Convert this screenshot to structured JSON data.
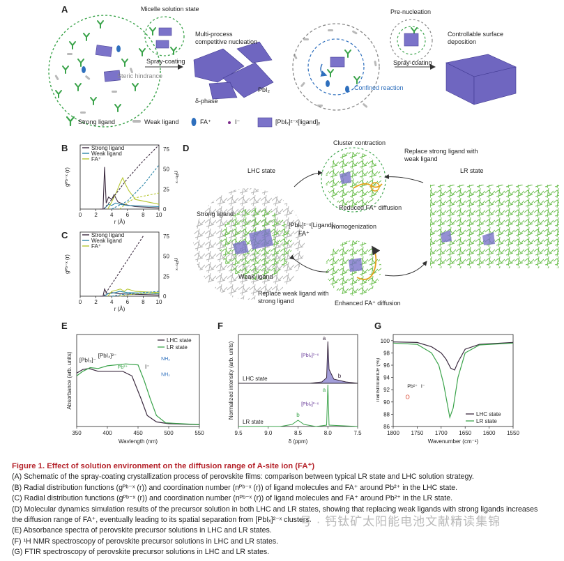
{
  "panelA": {
    "label": "A",
    "micelle": "Micelle solution state",
    "spray1": "Spray-coating",
    "multiprocess": "Multi-process competitive nucleation",
    "steric": "Steric hindrance",
    "delta": "δ-phase",
    "pbi2": "PbI₂",
    "prenuc": "Pre-nucleation",
    "spray2": "Spray-coating",
    "controllable": "Controllable surface deposition",
    "confined": "Confined reaction",
    "legend": {
      "strong": "Strong ligand",
      "weak": "Weak ligand",
      "fa": "FA⁺",
      "iodide": "I⁻",
      "cluster": "[PbIₓ]²⁻ˣ[ligand]ᵧ"
    }
  },
  "panelB": {
    "label": "B",
    "legend": [
      "Strong ligand",
      "Weak ligand",
      "FA⁺"
    ],
    "xlabel": "r (Å)",
    "ylabel": "gᴾᵇ⁻ˣ (r)",
    "y2label": "nᴾᵇ⁻ˣ",
    "xticks": [
      "0",
      "2",
      "4",
      "6",
      "8",
      "10"
    ],
    "y2ticks": [
      "0",
      "25",
      "50",
      "75"
    ]
  },
  "panelC": {
    "label": "C",
    "legend": [
      "Strong ligand",
      "Weak ligand",
      "FA⁺"
    ],
    "xlabel": "r (Å)",
    "ylabel": "gᴾᵇ⁻ˣ (r)",
    "y2label": "nᴾᵇ⁻ˣ",
    "xticks": [
      "0",
      "2",
      "4",
      "6",
      "8",
      "10"
    ],
    "y2ticks": [
      "0",
      "25",
      "50",
      "75"
    ]
  },
  "panelD": {
    "label": "D",
    "cluster_contraction": "Cluster contraction",
    "replace_strong": "Replace strong ligand with weak ligand",
    "lhc_state": "LHC state",
    "lr_state": "LR state",
    "strong_ligand": "Strong ligand",
    "cluster": "[PbIₓ]²⁻ˣ[Ligand]ᵧ",
    "fa": "FA⁺",
    "reduced": "Reduced FA⁺ diffusion",
    "homogenization": "Homogenization",
    "weak_ligand": "Weak ligand",
    "replace_weak": "Replace weak ligand with strong ligand",
    "enhanced": "Enhanced FA⁺ diffusion"
  },
  "panelE": {
    "label": "E",
    "ylabel": "Absorbance (arb. units)",
    "xlabel": "Wavlength (nm)",
    "xticks": [
      "350",
      "400",
      "450",
      "500",
      "550"
    ],
    "legend": [
      "LHC state",
      "LR state"
    ],
    "ann_pbi3": "[PbI₃]⁻",
    "ann_pbi4": "[PbI₄]²⁻",
    "ann_pb": "Pb²⁺",
    "ann_i": "I⁻",
    "ann_nh2": "NH₂"
  },
  "panelF": {
    "label": "F",
    "ylabel": "Normalized intensity (arb. units)",
    "xlabel": "δ (ppm)",
    "xticks": [
      "9.5",
      "9.0",
      "8.5",
      "8.0",
      "7.5"
    ],
    "lhc": "LHC state",
    "lr": "LR state",
    "peak_a": "a",
    "peak_b": "b",
    "ann_pbi_top": "[PbIₓ]²⁻ˣ",
    "ann_pbi_bot": "[PbIₓ]²⁻ˣ"
  },
  "panelG": {
    "label": "G",
    "ylabel": "Transmittance (%)",
    "xlabel": "Wavenumber (cm⁻¹)",
    "xticks": [
      "1800",
      "1750",
      "1700",
      "1650",
      "1600",
      "1550"
    ],
    "yticks": [
      "86",
      "88",
      "90",
      "92",
      "94",
      "96",
      "98",
      "100"
    ],
    "legend": [
      "LHC state",
      "LR state"
    ],
    "ann_pb": "Pb²⁺",
    "ann_i": "I⁻",
    "ann_o": "O"
  },
  "caption": {
    "title": "Figure 1.  Effect of solution environment on the diffusion range of A-site ion (FA⁺)",
    "lines": [
      "(A) Schematic of the spray-coating crystallization process of perovskite films: comparison between typical LR state and LHC solution strategy.",
      "(B) Radial distribution functions (gᴾᵇ⁻ˣ (r)) and coordination number (nᴾᵇ⁻ˣ (r)) of ligand molecules and FA⁺ around Pb²⁺ in the LHC state.",
      "(C) Radial distribution functions (gᴾᵇ⁻ˣ (r)) and coordination number (nᴾᵇ⁻ˣ (r)) of ligand molecules and FA⁺ around Pb²⁺ in the LR state.",
      "(D) Molecular dynamics simulation results of the precursor solution in both LHC and LR states, showing that replacing weak ligands with strong ligands increases",
      "the diffusion range of FA⁺, eventually leading to its spatial separation from [PbIₓ]²⁻ˣ clusters.",
      "(E) Absorbance spectra of perovskite precursor solutions in LHC and LR states.",
      "(F) ¹H NMR spectroscopy of perovskite precursor solutions in LHC and LR states.",
      "(G) FTIR spectroscopy of perovskite precursor solutions in LHC and LR states."
    ]
  },
  "watermark": "号 · 钙钛矿太阳能电池文献精读集锦",
  "colors": {
    "green": "#5aa84a",
    "purple": "#7b73c9",
    "blue": "#2e6fbd",
    "red_title": "#b5232b",
    "lhc": "#3b2a3f",
    "lr": "#3aa34a",
    "weakblue": "#2b86a8",
    "fa_yellow": "#b7c832"
  }
}
